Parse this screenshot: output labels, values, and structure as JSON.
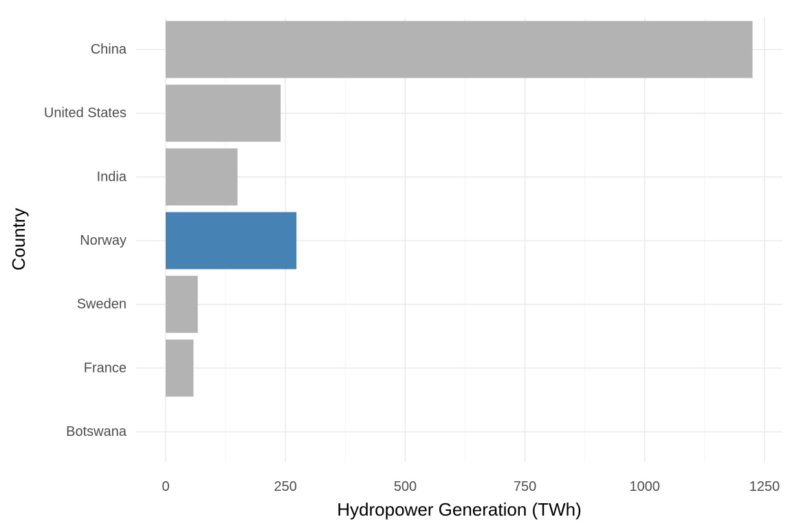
{
  "chart_data": {
    "type": "bar",
    "orientation": "horizontal",
    "title": "",
    "xlabel": "Hydropower Generation (TWh)",
    "ylabel": "Country",
    "categories": [
      "China",
      "United States",
      "India",
      "Norway",
      "Sweden",
      "France",
      "Botswana"
    ],
    "values": [
      1225,
      240,
      150,
      273,
      67,
      58,
      0
    ],
    "highlight": "Norway",
    "colors": {
      "default": "#b3b3b3",
      "highlight": "#4682b4"
    },
    "xlim": [
      0,
      1287
    ],
    "xticks": [
      0,
      250,
      500,
      750,
      1000,
      1250
    ],
    "xtick_labels": [
      "0",
      "250",
      "500",
      "750",
      "1000",
      "1250"
    ],
    "grid": true,
    "legend": "none"
  }
}
